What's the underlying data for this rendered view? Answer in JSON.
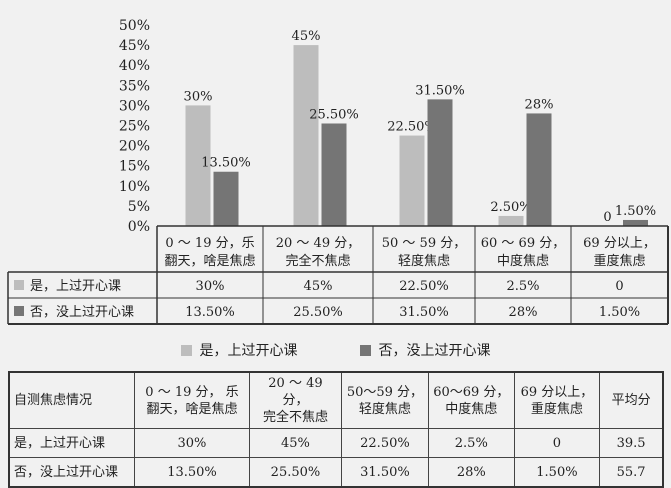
{
  "chart_data": {
    "type": "bar",
    "categories": [
      [
        "0 ～ 19 分，乐",
        "翻天，啥是焦虑"
      ],
      [
        "20 ～ 49 分，",
        "完全不焦虑"
      ],
      [
        "50 ～ 59 分，",
        "轻度焦虑"
      ],
      [
        "60 ～ 69 分，",
        "中度焦虑"
      ],
      [
        "69 分以上，",
        "重度焦虑"
      ]
    ],
    "series": [
      {
        "name": "是，上过开心课",
        "values": [
          30,
          45,
          22.5,
          2.5,
          0
        ],
        "labels": [
          "30%",
          "45%",
          "22.50%",
          "2.50%",
          "0"
        ],
        "cells": [
          "30%",
          "45%",
          "22.50%",
          "2.5%",
          "0"
        ],
        "color": "#bdbdbd"
      },
      {
        "name": "否，没上过开心课",
        "values": [
          13.5,
          25.5,
          31.5,
          28,
          1.5
        ],
        "labels": [
          "13.50%",
          "25.50%",
          "31.50%",
          "28%",
          "1.50%"
        ],
        "cells": [
          "13.50%",
          "25.50%",
          "31.50%",
          "28%",
          "1.50%"
        ],
        "color": "#757575"
      }
    ],
    "y_ticks": [
      "0%",
      "5%",
      "10%",
      "15%",
      "20%",
      "25%",
      "30%",
      "35%",
      "40%",
      "45%",
      "50%"
    ],
    "ylim": [
      0,
      50
    ],
    "legend": "bottom"
  },
  "legend": {
    "yes_label": "是，上过开心课",
    "no_label": "否，没上过开心课"
  },
  "summary_table": {
    "header": [
      "自测焦虑情况",
      "0 ～ 19 分， 乐翻天，啥是焦虑",
      "20 ～ 49 分，完全不焦虑",
      "50～59 分，轻度焦虑",
      "60～69 分，中度焦虑",
      "69 分以上，重度焦虑",
      "平均分"
    ],
    "header_lines": [
      [
        "自测焦虑情况"
      ],
      [
        "0 ～ 19 分，  乐",
        "翻天，啥是焦虑"
      ],
      [
        "20 ～ 49 分，",
        "完全不焦虑"
      ],
      [
        "50～59 分，",
        "轻度焦虑"
      ],
      [
        "60～69 分，",
        "中度焦虑"
      ],
      [
        "69 分以上，",
        "重度焦虑"
      ],
      [
        "平均分"
      ]
    ],
    "rows": [
      [
        "是，上过开心课",
        "30%",
        "45%",
        "22.50%",
        "2.5%",
        "0",
        "39.5"
      ],
      [
        "否，没上过开心课",
        "13.50%",
        "25.50%",
        "31.50%",
        "28%",
        "1.50%",
        "55.7"
      ]
    ]
  }
}
